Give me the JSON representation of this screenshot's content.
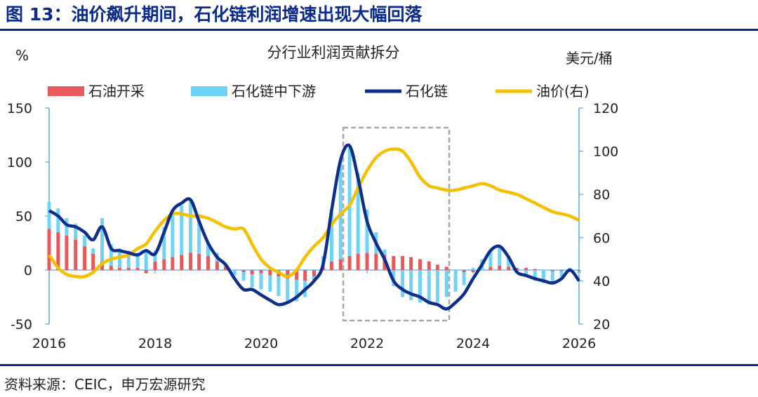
{
  "figure": {
    "title": "图 13：油价飙升期间，石化链利润增速出现大幅回落",
    "source": "资料来源：CEIC，申万宏源研究"
  },
  "colors": {
    "title": "#0a2a8c",
    "upstream_bar": "#e8595b",
    "downstream_bar": "#6fd3f7",
    "chain_line": "#0d2e8a",
    "oil_line": "#f5c000",
    "axis": "#5aa9e6",
    "highlight_box": "#a8a8a8"
  },
  "chart_data": {
    "type": "bar+line",
    "title": "分行业利润贡献拆分",
    "ylabel_left": "%",
    "ylabel_right": "美元/桶",
    "ylim_left": [
      -50,
      150
    ],
    "yticks_left": [
      -50,
      0,
      50,
      100,
      150
    ],
    "ylim_right": [
      20,
      120
    ],
    "yticks_right": [
      20,
      40,
      60,
      80,
      100,
      120
    ],
    "xlim": [
      2016,
      2026
    ],
    "xticks": [
      2016,
      2018,
      2020,
      2022,
      2024,
      2026
    ],
    "legend": [
      "石油开采",
      "石化链中下游",
      "石化链",
      "油价(右)"
    ],
    "highlight_period": [
      2021.55,
      2023.55
    ],
    "series_bars": [
      {
        "name": "石油开采",
        "axis": "left",
        "x": [
          2016.0,
          2016.17,
          2016.33,
          2016.5,
          2016.67,
          2016.83,
          2017.0,
          2017.17,
          2017.33,
          2017.5,
          2017.67,
          2017.83,
          2018.0,
          2018.17,
          2018.33,
          2018.5,
          2018.67,
          2018.83,
          2019.0,
          2019.17,
          2019.33,
          2019.5,
          2019.67,
          2019.83,
          2020.0,
          2020.17,
          2020.33,
          2020.5,
          2020.67,
          2020.83,
          2021.0,
          2021.17,
          2021.33,
          2021.5,
          2021.67,
          2021.83,
          2022.0,
          2022.17,
          2022.33,
          2022.5,
          2022.67,
          2022.83,
          2023.0,
          2023.17,
          2023.33,
          2023.5,
          2023.67,
          2023.83,
          2024.0,
          2024.17,
          2024.33,
          2024.5,
          2024.67,
          2024.83,
          2025.0,
          2025.17,
          2025.33,
          2025.5,
          2025.67,
          2025.83,
          2026.0
        ],
        "values": [
          38,
          35,
          32,
          28,
          22,
          15,
          8,
          4,
          2,
          2,
          2,
          -3,
          8,
          10,
          12,
          14,
          16,
          15,
          13,
          8,
          3,
          0,
          -2,
          -4,
          -3,
          -5,
          -6,
          -8,
          -9,
          -10,
          -6,
          3,
          8,
          10,
          13,
          15,
          16,
          15,
          14,
          13,
          13,
          12,
          10,
          8,
          5,
          3,
          0,
          -2,
          -2,
          0,
          3,
          4,
          3,
          2,
          2,
          1,
          0,
          -1,
          -1,
          -1,
          -1
        ]
      },
      {
        "name": "石化链中下游",
        "axis": "left",
        "x": [
          2016.0,
          2016.17,
          2016.33,
          2016.5,
          2016.67,
          2016.83,
          2017.0,
          2017.17,
          2017.33,
          2017.5,
          2017.67,
          2017.83,
          2018.0,
          2018.17,
          2018.33,
          2018.5,
          2018.67,
          2018.83,
          2019.0,
          2019.17,
          2019.33,
          2019.5,
          2019.67,
          2019.83,
          2020.0,
          2020.17,
          2020.33,
          2020.5,
          2020.67,
          2020.83,
          2021.0,
          2021.17,
          2021.33,
          2021.5,
          2021.67,
          2021.83,
          2022.0,
          2022.17,
          2022.33,
          2022.5,
          2022.67,
          2022.83,
          2023.0,
          2023.17,
          2023.33,
          2023.5,
          2023.67,
          2023.83,
          2024.0,
          2024.17,
          2024.33,
          2024.5,
          2024.67,
          2024.83,
          2025.0,
          2025.17,
          2025.33,
          2025.5,
          2025.67,
          2025.83,
          2026.0
        ],
        "values": [
          25,
          22,
          16,
          15,
          10,
          5,
          40,
          20,
          18,
          16,
          14,
          18,
          10,
          30,
          42,
          46,
          48,
          30,
          12,
          8,
          2,
          -5,
          -8,
          -12,
          -15,
          -15,
          -18,
          -22,
          -20,
          -15,
          -5,
          10,
          45,
          92,
          100,
          75,
          40,
          20,
          5,
          -15,
          -25,
          -28,
          -30,
          -32,
          -30,
          -25,
          -20,
          -12,
          2,
          10,
          15,
          18,
          10,
          0,
          -5,
          -10,
          -12,
          -10,
          -5,
          2,
          -2
        ]
      }
    ],
    "series_lines": [
      {
        "name": "石化链",
        "axis": "left",
        "x": [
          2016.0,
          2016.17,
          2016.33,
          2016.5,
          2016.67,
          2016.83,
          2017.0,
          2017.17,
          2017.33,
          2017.5,
          2017.67,
          2017.83,
          2018.0,
          2018.17,
          2018.33,
          2018.5,
          2018.67,
          2018.83,
          2019.0,
          2019.17,
          2019.33,
          2019.5,
          2019.67,
          2019.83,
          2020.0,
          2020.17,
          2020.33,
          2020.5,
          2020.67,
          2020.83,
          2021.0,
          2021.17,
          2021.33,
          2021.5,
          2021.67,
          2021.83,
          2022.0,
          2022.17,
          2022.33,
          2022.5,
          2022.67,
          2022.83,
          2023.0,
          2023.17,
          2023.33,
          2023.5,
          2023.67,
          2023.83,
          2024.0,
          2024.17,
          2024.33,
          2024.5,
          2024.67,
          2024.83,
          2025.0,
          2025.17,
          2025.33,
          2025.5,
          2025.67,
          2025.83,
          2026.0
        ],
        "values": [
          55,
          50,
          42,
          40,
          35,
          28,
          40,
          20,
          18,
          16,
          14,
          18,
          15,
          35,
          55,
          62,
          65,
          45,
          25,
          12,
          5,
          -8,
          -18,
          -18,
          -23,
          -28,
          -32,
          -30,
          -25,
          -18,
          -10,
          5,
          55,
          102,
          115,
          85,
          45,
          25,
          10,
          -10,
          -18,
          -22,
          -25,
          -30,
          -32,
          -36,
          -30,
          -22,
          -8,
          5,
          18,
          22,
          12,
          -2,
          -5,
          -8,
          -10,
          -12,
          -8,
          0,
          -10
        ]
      },
      {
        "name": "油价(右)",
        "axis": "right",
        "x": [
          2016.0,
          2016.17,
          2016.33,
          2016.5,
          2016.67,
          2016.83,
          2017.0,
          2017.17,
          2017.33,
          2017.5,
          2017.67,
          2017.83,
          2018.0,
          2018.17,
          2018.33,
          2018.5,
          2018.67,
          2018.83,
          2019.0,
          2019.17,
          2019.33,
          2019.5,
          2019.67,
          2019.83,
          2020.0,
          2020.17,
          2020.33,
          2020.5,
          2020.67,
          2020.83,
          2021.0,
          2021.17,
          2021.33,
          2021.5,
          2021.67,
          2021.83,
          2022.0,
          2022.17,
          2022.33,
          2022.5,
          2022.67,
          2022.83,
          2023.0,
          2023.17,
          2023.33,
          2023.5,
          2023.67,
          2023.83,
          2024.0,
          2024.17,
          2024.33,
          2024.5,
          2024.67,
          2024.83,
          2025.0,
          2025.17,
          2025.33,
          2025.5,
          2025.67,
          2025.83,
          2026.0
        ],
        "values": [
          52,
          46,
          43,
          42,
          42,
          44,
          48,
          50,
          51,
          52,
          55,
          57,
          63,
          68,
          71,
          71,
          70,
          70,
          69,
          67,
          65,
          64,
          64,
          57,
          50,
          46,
          44,
          42,
          45,
          51,
          56,
          60,
          66,
          71,
          75,
          83,
          91,
          97,
          100,
          101,
          100,
          95,
          88,
          84,
          83,
          82,
          82,
          83,
          84,
          85,
          84,
          82,
          81,
          80,
          78,
          76,
          74,
          72,
          71,
          70,
          68
        ]
      }
    ]
  }
}
